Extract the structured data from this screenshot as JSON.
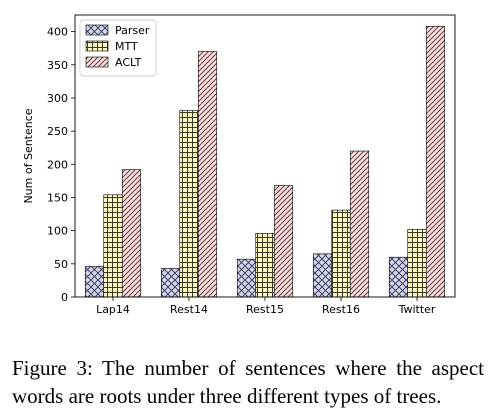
{
  "chart_data": {
    "type": "bar",
    "categories": [
      "Lap14",
      "Rest14",
      "Rest15",
      "Rest16",
      "Twitter"
    ],
    "series": [
      {
        "name": "Parser",
        "values": [
          46,
          43,
          57,
          65,
          60
        ],
        "color": "#d3d6ea",
        "hatch": "cross"
      },
      {
        "name": "MTT",
        "values": [
          154,
          281,
          96,
          131,
          102
        ],
        "color": "#fff9c6",
        "hatch": "grid"
      },
      {
        "name": "ACLT",
        "values": [
          192,
          370,
          168,
          220,
          408
        ],
        "color": "#f6dede",
        "hatch": "diagonal"
      }
    ],
    "xlabel": "",
    "ylabel": "Num of Sentence",
    "ylim": [
      0,
      425
    ],
    "yticks": [
      0,
      50,
      100,
      150,
      200,
      250,
      300,
      350,
      400
    ],
    "legend_position": "top-left",
    "grid": false
  },
  "caption": {
    "line1": "Figure 3: The number of sentences where the aspect",
    "line2": "words are roots under three different types of trees."
  }
}
